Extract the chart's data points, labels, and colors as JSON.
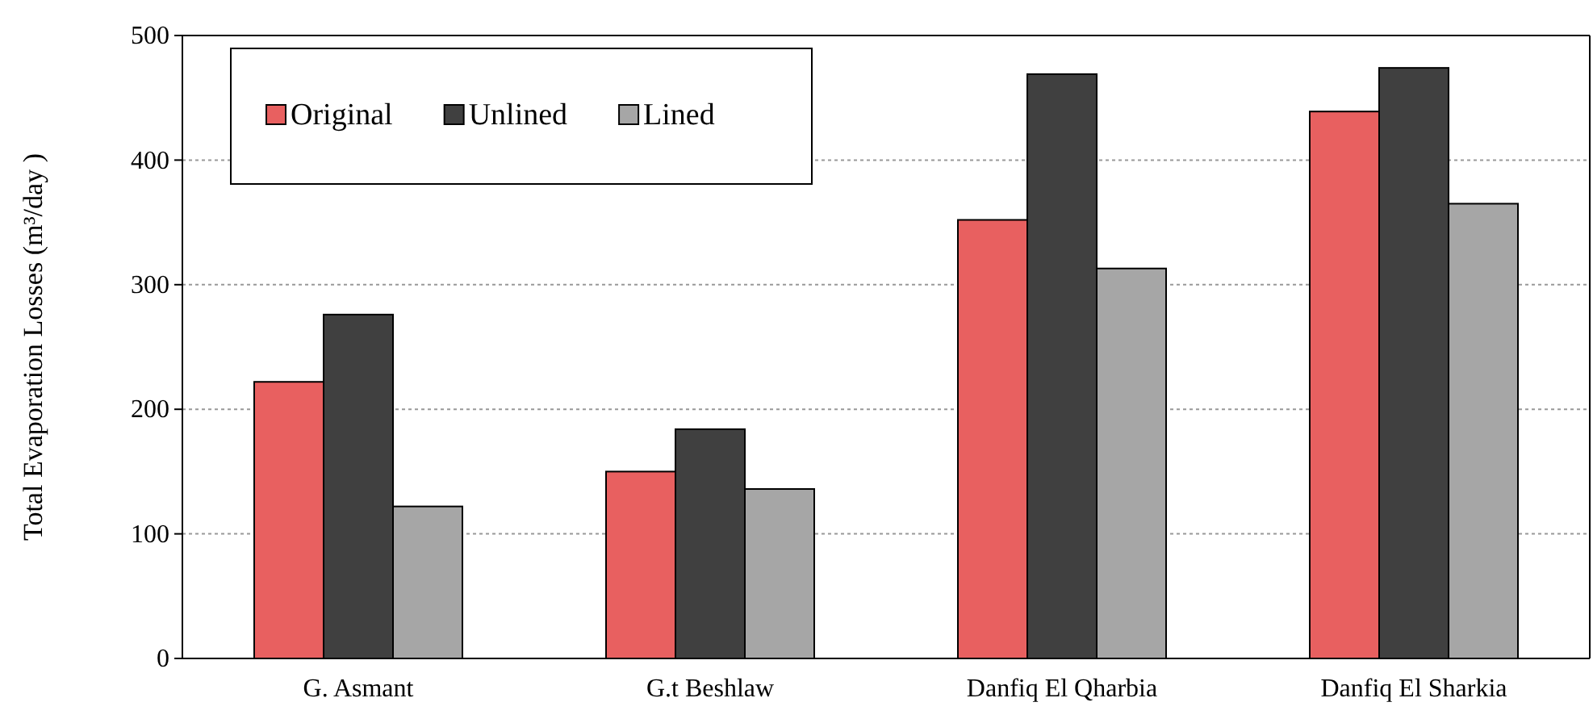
{
  "chart_data": {
    "type": "bar",
    "ylabel": "Total Evaporation Losses (m³/day )",
    "categories": [
      "G. Asmant",
      "G.t Beshlaw",
      "Danfiq El Qharbia",
      "Danfiq El Sharkia"
    ],
    "series": [
      {
        "name": "Original",
        "color": "#e86060",
        "values": [
          222,
          150,
          352,
          439
        ]
      },
      {
        "name": "Unlined",
        "color": "#404040",
        "values": [
          276,
          184,
          469,
          474
        ]
      },
      {
        "name": "Lined",
        "color": "#a6a6a6",
        "values": [
          122,
          136,
          313,
          365
        ]
      }
    ],
    "ylim": [
      0,
      500
    ],
    "yticks": [
      0,
      100,
      200,
      300,
      400,
      500
    ],
    "grid": "y",
    "legend": "top left"
  }
}
